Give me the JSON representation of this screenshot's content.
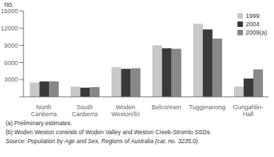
{
  "chart_data": {
    "type": "bar",
    "ylabel": "no.",
    "categories": [
      "North\nCanberra",
      "South\nCanberra",
      "Woden\nWeston(b)",
      "Belconnen",
      "Tuggeranong",
      "Gungahlin-\nHall"
    ],
    "series": [
      {
        "name": "1999",
        "color": "#c8c8c8",
        "values": [
          2500,
          1800,
          5200,
          9000,
          12800,
          1800
        ]
      },
      {
        "name": "2004",
        "color": "#3a3a3a",
        "values": [
          2700,
          1600,
          4900,
          8500,
          11800,
          3200
        ]
      },
      {
        "name": "2009(a)",
        "color": "#888888",
        "values": [
          2700,
          1700,
          5000,
          8400,
          10200,
          4800
        ]
      }
    ],
    "ylim": [
      0,
      15000
    ],
    "yticks": [
      {
        "value": 0,
        "label": null
      },
      3000,
      6000,
      9000,
      12000,
      15000
    ],
    "grid": false,
    "legend": "upper right",
    "annotations": [
      "(a) Preliminary estimates.",
      "(b) Woden Weston consists of Woden Valley and Weston Creek-Stromlo SSDs.",
      "Source: Population by Age and Sex, Regions of Australia (cat. no.  3235.0)."
    ]
  }
}
